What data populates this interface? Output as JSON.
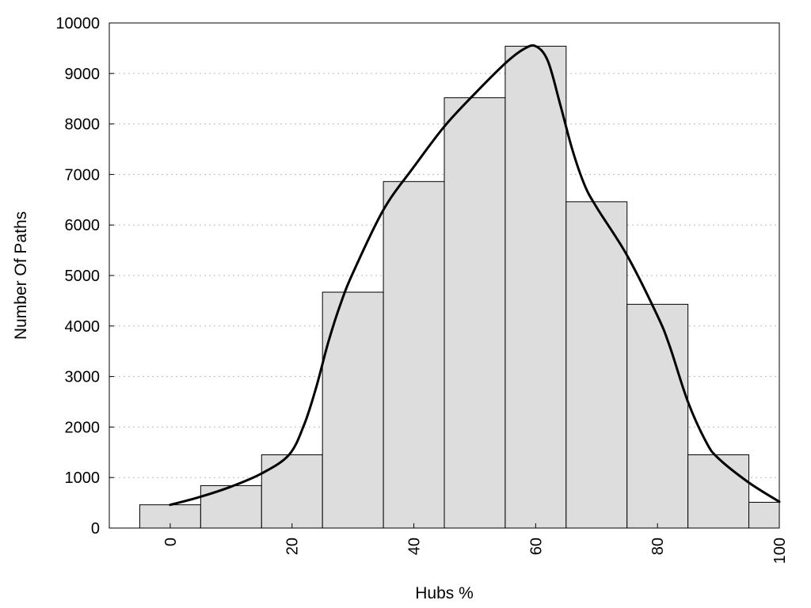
{
  "chart_data": {
    "type": "bar",
    "title": "",
    "xlabel": "Hubs %",
    "ylabel": "Number Of Paths",
    "x_ticks": [
      0,
      20,
      40,
      60,
      80,
      100
    ],
    "y_ticks": [
      0,
      1000,
      2000,
      3000,
      4000,
      5000,
      6000,
      7000,
      8000,
      9000,
      10000
    ],
    "xlim": [
      -10,
      100
    ],
    "ylim": [
      0,
      10000
    ],
    "grid": "horizontal-dotted",
    "bar_color": "#dddddd",
    "line_color": "#000000",
    "bars": [
      {
        "x": 0,
        "value": 460
      },
      {
        "x": 10,
        "value": 840
      },
      {
        "x": 20,
        "value": 1450
      },
      {
        "x": 30,
        "value": 4670
      },
      {
        "x": 40,
        "value": 6860
      },
      {
        "x": 50,
        "value": 8520
      },
      {
        "x": 60,
        "value": 9540
      },
      {
        "x": 70,
        "value": 6460
      },
      {
        "x": 80,
        "value": 4430
      },
      {
        "x": 90,
        "value": 1450
      },
      {
        "x": 100,
        "value": 510
      }
    ],
    "bar_width": 10,
    "curve": [
      {
        "x": 0,
        "y": 460
      },
      {
        "x": 5,
        "y": 620
      },
      {
        "x": 10,
        "y": 820
      },
      {
        "x": 15,
        "y": 1080
      },
      {
        "x": 19.5,
        "y": 1450
      },
      {
        "x": 22,
        "y": 2050
      },
      {
        "x": 24,
        "y": 2800
      },
      {
        "x": 26,
        "y": 3700
      },
      {
        "x": 28,
        "y": 4450
      },
      {
        "x": 30,
        "y": 5050
      },
      {
        "x": 35,
        "y": 6300
      },
      {
        "x": 40,
        "y": 7150
      },
      {
        "x": 45,
        "y": 7950
      },
      {
        "x": 50,
        "y": 8600
      },
      {
        "x": 55,
        "y": 9200
      },
      {
        "x": 58,
        "y": 9480
      },
      {
        "x": 60,
        "y": 9540
      },
      {
        "x": 62,
        "y": 9250
      },
      {
        "x": 64,
        "y": 8400
      },
      {
        "x": 66,
        "y": 7500
      },
      {
        "x": 68,
        "y": 6800
      },
      {
        "x": 70,
        "y": 6350
      },
      {
        "x": 75,
        "y": 5400
      },
      {
        "x": 80,
        "y": 4200
      },
      {
        "x": 82,
        "y": 3600
      },
      {
        "x": 85,
        "y": 2500
      },
      {
        "x": 88,
        "y": 1700
      },
      {
        "x": 90,
        "y": 1380
      },
      {
        "x": 95,
        "y": 900
      },
      {
        "x": 100,
        "y": 520
      }
    ]
  }
}
